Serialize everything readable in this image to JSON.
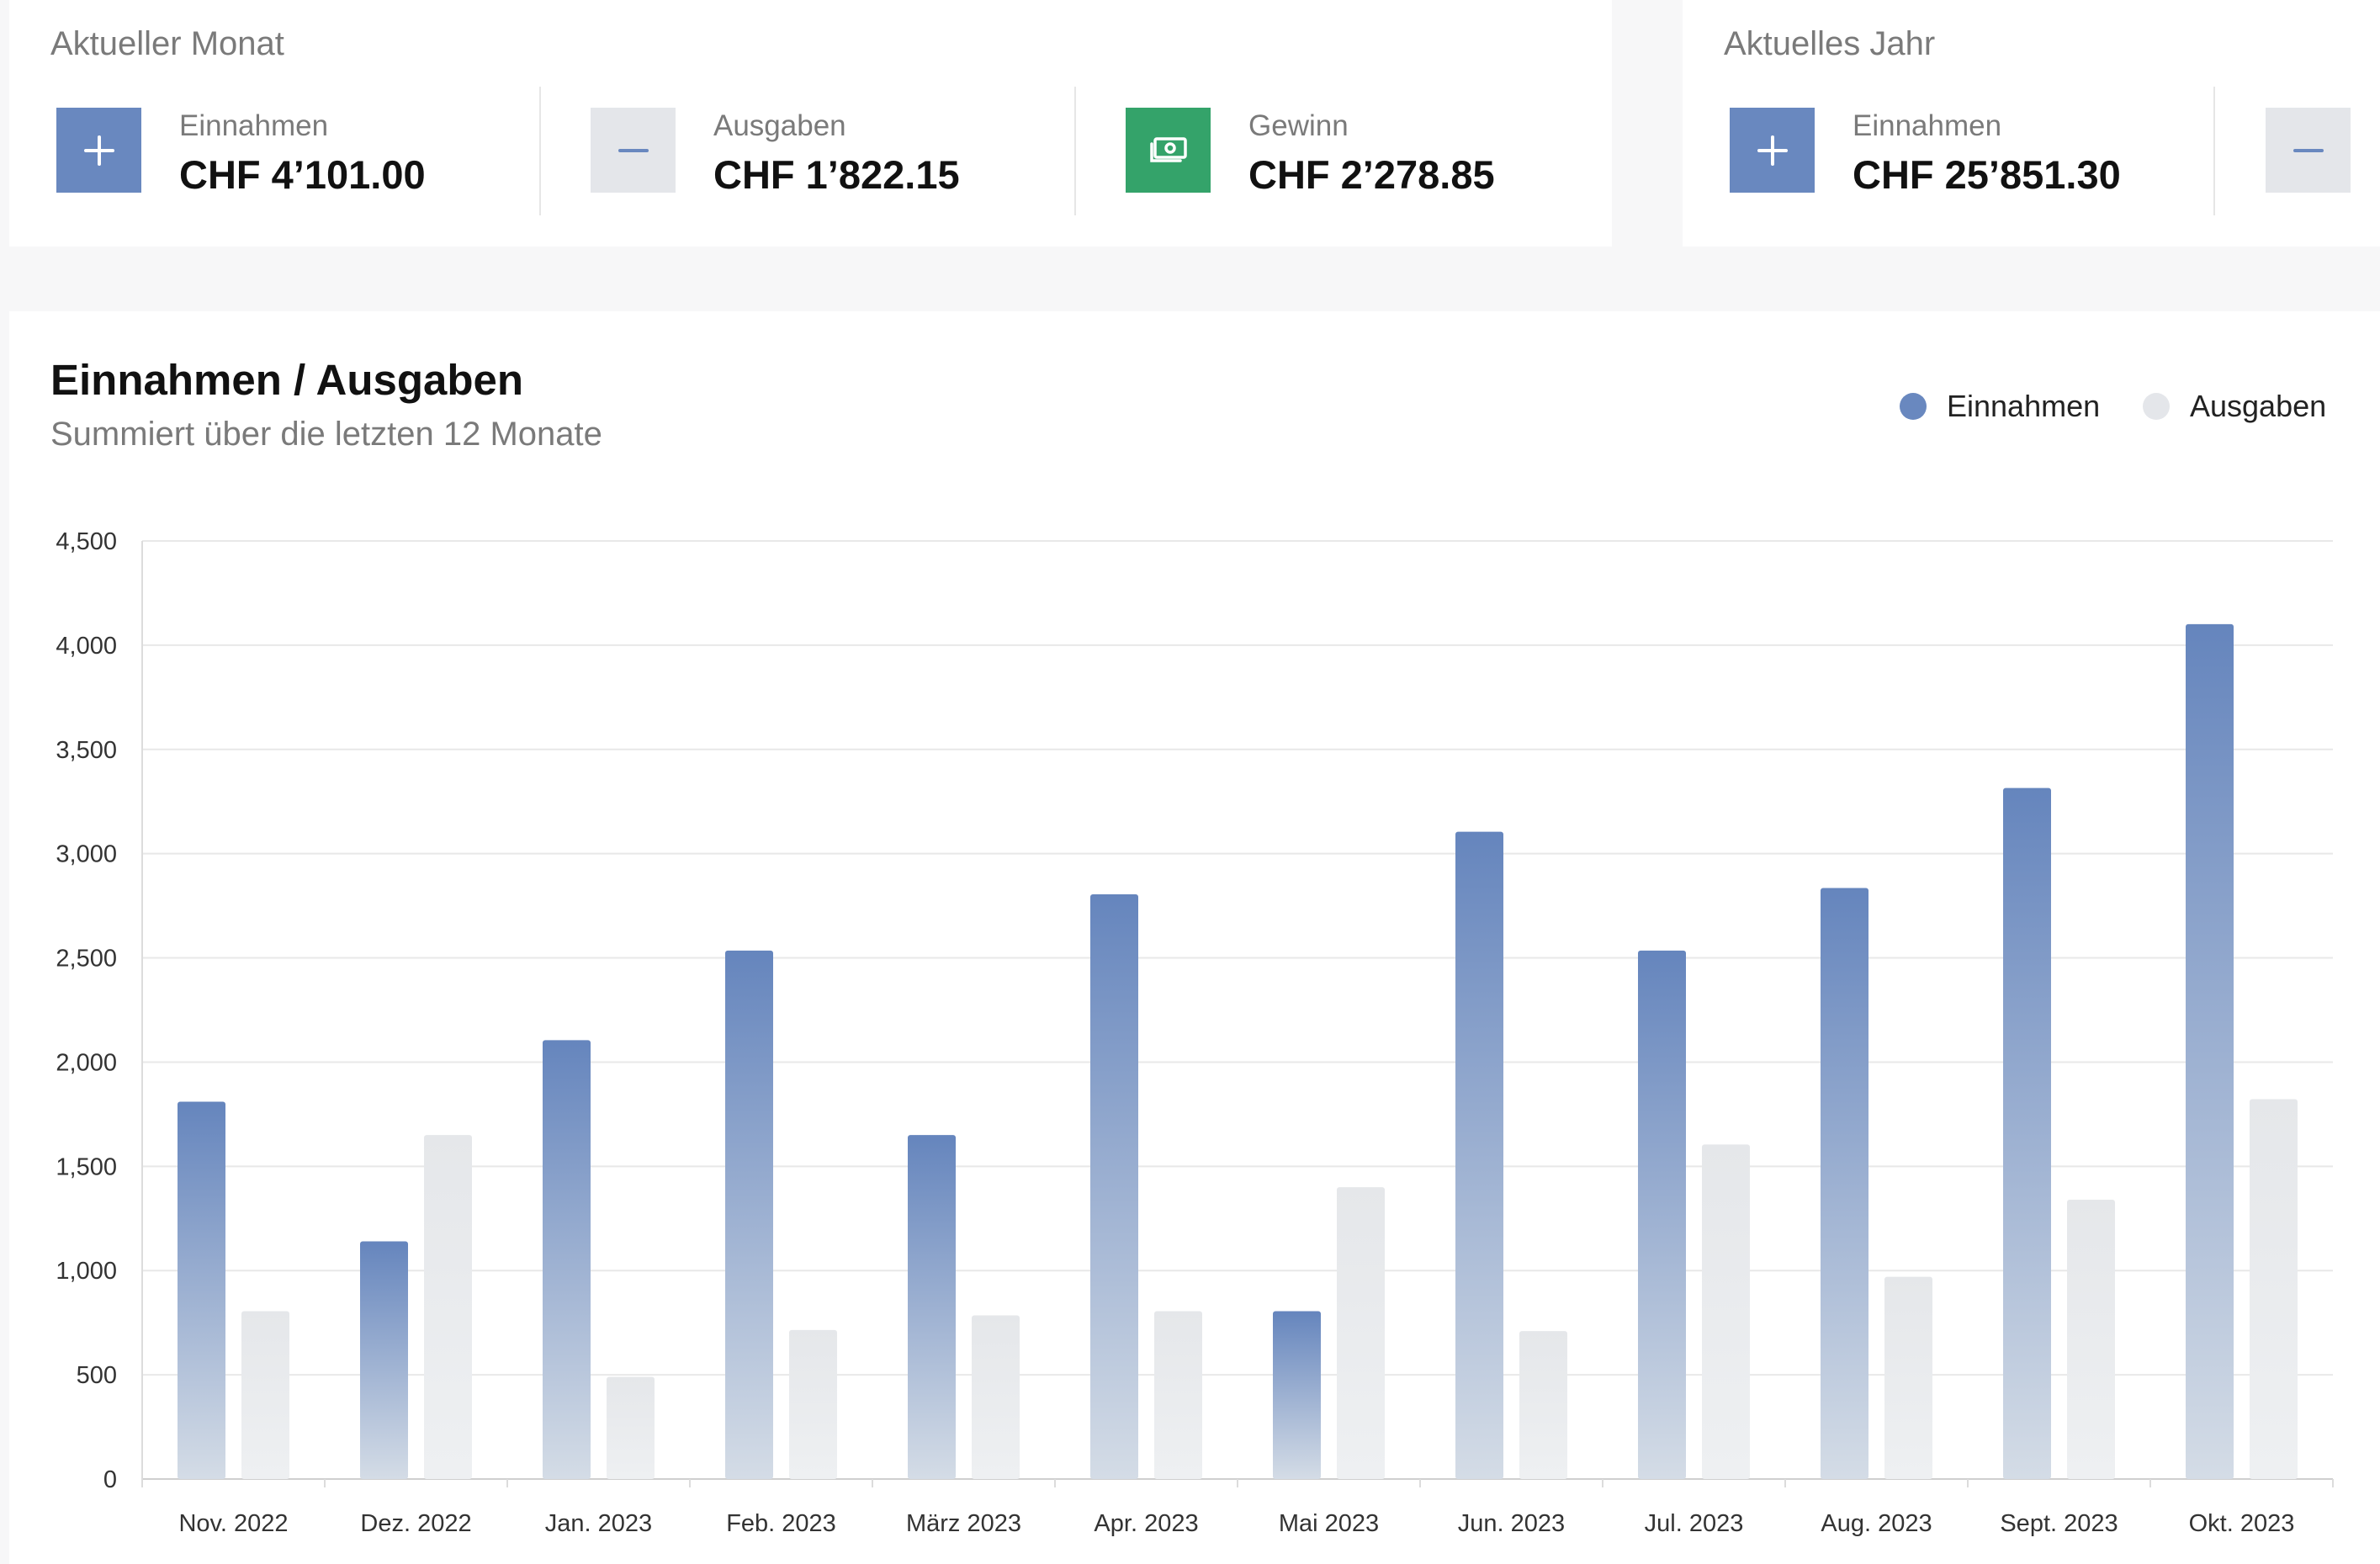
{
  "current_month": {
    "title": "Aktueller Monat",
    "income": {
      "label": "Einnahmen",
      "value": "CHF 4’101.00",
      "icon": "plus-icon"
    },
    "expenses": {
      "label": "Ausgaben",
      "value": "CHF 1’822.15",
      "icon": "minus-icon"
    },
    "profit": {
      "label": "Gewinn",
      "value": "CHF 2’278.85",
      "icon": "banknote-icon"
    }
  },
  "current_year": {
    "title": "Aktuelles Jahr",
    "income": {
      "label": "Einnahmen",
      "value": "CHF 25’851.30",
      "icon": "plus-icon"
    },
    "expenses": {
      "icon": "minus-icon"
    }
  },
  "colors": {
    "income": "#6988bf",
    "expenses": "#e4e6ea",
    "profit": "#34a36a"
  },
  "chart_data": {
    "type": "bar",
    "title": "Einnahmen / Ausgaben",
    "subtitle": "Summiert über die letzten 12 Monate",
    "categories": [
      "Nov. 2022",
      "Dez. 2022",
      "Jan. 2023",
      "Feb. 2023",
      "März 2023",
      "Apr. 2023",
      "Mai 2023",
      "Jun. 2023",
      "Jul. 2023",
      "Aug. 2023",
      "Sept. 2023",
      "Okt. 2023"
    ],
    "series": [
      {
        "name": "Einnahmen",
        "color": "#6988bf",
        "values": [
          1810,
          1140,
          2105,
          2535,
          1650,
          2805,
          805,
          3105,
          2535,
          2835,
          3315,
          4101
        ]
      },
      {
        "name": "Ausgaben",
        "color": "#e4e6ea",
        "values": [
          805,
          1650,
          490,
          715,
          785,
          805,
          1400,
          710,
          1605,
          970,
          1340,
          1822.15
        ]
      }
    ],
    "ylim": [
      0,
      4500
    ],
    "yticks": [
      "0",
      "500",
      "1,000",
      "1,500",
      "2,000",
      "2,500",
      "3,000",
      "3,500",
      "4,000",
      "4,500"
    ],
    "ytick_values": [
      0,
      500,
      1000,
      1500,
      2000,
      2500,
      3000,
      3500,
      4000,
      4500
    ],
    "grid": true,
    "legend_position": "top-right"
  }
}
